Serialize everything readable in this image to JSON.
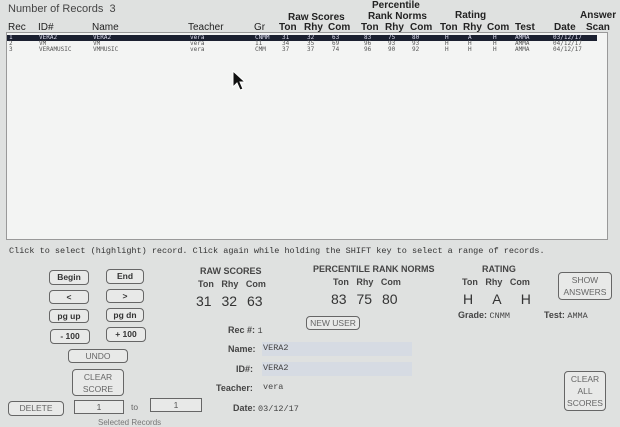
{
  "title": "Number of Records",
  "record_count": "3",
  "headers": {
    "group_raw": "Raw Scores",
    "group_pct1": "Percentile",
    "group_pct2": "Rank Norms",
    "group_rating": "Rating",
    "group_answer": "Answer",
    "rec": "Rec",
    "id": "ID#",
    "name": "Name",
    "teacher": "Teacher",
    "gr": "Gr",
    "ton": "Ton",
    "rhy": "Rhy",
    "com": "Com",
    "test": "Test",
    "date": "Date",
    "scan": "Scan"
  },
  "records": [
    {
      "rec": "1",
      "id": "VERA2",
      "name": "VERA2",
      "teacher": "vera",
      "gr": "CNMM",
      "raw": [
        "31",
        "32",
        "63"
      ],
      "pct": [
        "83",
        "75",
        "80"
      ],
      "rating": [
        "H",
        "A",
        "H"
      ],
      "test": "AMMA",
      "date": "03/12/17",
      "selected": true
    },
    {
      "rec": "2",
      "id": "VM",
      "name": "VM",
      "teacher": "vera",
      "gr": "11",
      "raw": [
        "34",
        "35",
        "69"
      ],
      "pct": [
        "96",
        "93",
        "93"
      ],
      "rating": [
        "H",
        "H",
        "H"
      ],
      "test": "AMMA",
      "date": "04/12/17",
      "selected": false
    },
    {
      "rec": "3",
      "id": "VERAMUSIC",
      "name": "VMMUSIC",
      "teacher": "vera",
      "gr": "CMM",
      "raw": [
        "37",
        "37",
        "74"
      ],
      "pct": [
        "96",
        "90",
        "92"
      ],
      "rating": [
        "H",
        "H",
        "H"
      ],
      "test": "AMMA",
      "date": "04/12/17",
      "selected": false
    }
  ],
  "hint": "Click to select (highlight) record.  Click again while holding the SHIFT key to select a range of records.",
  "nav": {
    "begin": "Begin",
    "end": "End",
    "prev": "<",
    "next": ">",
    "pgup": "pg up",
    "pgdn": "pg dn",
    "minus100": "- 100",
    "plus100": "+ 100",
    "undo": "UNDO",
    "clear_score": "CLEAR SCORE",
    "delete": "DELETE",
    "from": "1",
    "to_label": "to",
    "to": "1",
    "selected_records": "Selected Records"
  },
  "detail": {
    "raw_title": "RAW   SCORES",
    "pct_title": "PERCENTILE RANK NORMS",
    "rating_title": "RATING",
    "ton": "Ton",
    "rhy": "Rhy",
    "com": "Com",
    "raw": [
      "31",
      "32",
      "63"
    ],
    "pct": [
      "83",
      "75",
      "80"
    ],
    "rating": [
      "H",
      "A",
      "H"
    ],
    "grade_label": "Grade:",
    "grade": "CNMM",
    "test_label": "Test:",
    "test": "AMMA",
    "new_user": "NEW USER",
    "show_answers": "SHOW ANSWERS",
    "clear_all": "CLEAR ALL SCORES",
    "rec_label": "Rec #:",
    "rec": "1",
    "name_label": "Name:",
    "name": "VERA2",
    "id_label": "ID#:",
    "id": "VERA2",
    "teacher_label": "Teacher:",
    "teacher": "vera",
    "date_label": "Date:",
    "date": "03/12/17"
  }
}
